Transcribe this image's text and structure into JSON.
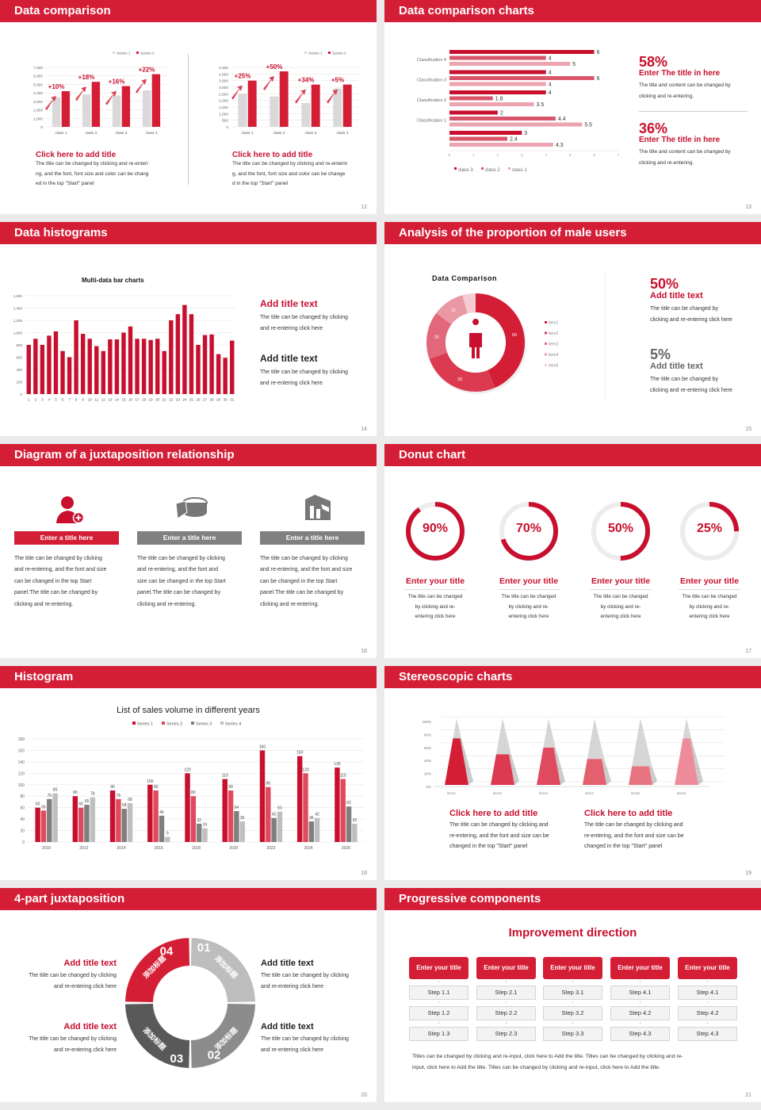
{
  "colors": {
    "accent": "#d41e36",
    "dark": "#595959",
    "mid": "#8c8c8c",
    "light": "#bdbdbd"
  },
  "slides": {
    "s12": {
      "title": "Data comparison",
      "page": "12",
      "charts": [
        {
          "type": "bar",
          "legend": [
            "Series 1",
            "Series 2"
          ],
          "categories": [
            "class 1",
            "class 2",
            "class 3",
            "class 4"
          ],
          "ylim": [
            0,
            7000
          ],
          "yticks": [
            "0",
            "1,000",
            "2,000",
            "3,000",
            "4,000",
            "5,000",
            "6,000",
            "7,000"
          ],
          "series": [
            {
              "name": "Series 1",
              "values": [
                3500,
                3800,
                3700,
                4300
              ]
            },
            {
              "name": "Series 2",
              "values": [
                4200,
                5300,
                4800,
                6200
              ]
            }
          ],
          "growth": [
            "+10%",
            "+18%",
            "+16%",
            "+22%"
          ]
        },
        {
          "type": "bar",
          "legend": [
            "Series 1",
            "Series 2"
          ],
          "categories": [
            "class 1",
            "class 2",
            "class 3",
            "class 4"
          ],
          "ylim": [
            0,
            4500
          ],
          "yticks": [
            "0",
            "500",
            "1,000",
            "1,500",
            "2,000",
            "2,500",
            "3,000",
            "3,500",
            "4,000",
            "4,500"
          ],
          "series": [
            {
              "name": "Series 1",
              "values": [
                2500,
                2300,
                1800,
                2900
              ]
            },
            {
              "name": "Series 2",
              "values": [
                3500,
                4200,
                3200,
                3200
              ]
            }
          ],
          "growth": [
            "+25%",
            "+50%",
            "+34%",
            "+5%"
          ]
        }
      ],
      "blocks": [
        {
          "title": "Click here to add title",
          "body": [
            "The title can be changed by clicking and re-enteri",
            "ng, and the font, font size and color can be chang",
            "ed in the top \"Start\" panel"
          ]
        },
        {
          "title": "Click here to add title",
          "body": [
            "The title can be changed by clicking and re-enterin",
            "g, and the font, font size and color can be change",
            "d in the top \"Start\" panel"
          ]
        }
      ]
    },
    "s13": {
      "title": "Data comparison charts",
      "page": "13",
      "chart": {
        "type": "bar",
        "orientation": "horizontal",
        "group_labels": [
          "Classification 4",
          "Classification 3",
          "Classification 2",
          "Classification 1",
          ""
        ],
        "xlim": [
          0,
          7
        ],
        "xticks": [
          "0",
          "1",
          "2",
          "3",
          "4",
          "5",
          "6",
          "7"
        ],
        "series": [
          {
            "name": "class 3",
            "values": [
              6,
              4,
              4,
              2,
              3
            ]
          },
          {
            "name": "class 2",
            "values": [
              4,
              6,
              1.8,
              4.4,
              2.4
            ]
          },
          {
            "name": "class 1",
            "values": [
              5,
              4,
              3.5,
              5.5,
              4.3
            ]
          }
        ],
        "value_labels": [
          [
            "6",
            "4",
            "5"
          ],
          [
            "4",
            "6",
            "4"
          ],
          [
            "4",
            "1.8",
            "3.5"
          ],
          [
            "2",
            "4.4",
            "5.5"
          ],
          [
            "3",
            "2.4",
            "4.3"
          ]
        ]
      },
      "stats": [
        {
          "pct": "58%",
          "title": "Enter The title in here",
          "body": [
            "The title and content can be changed by",
            "clicking and re-entering."
          ]
        },
        {
          "pct": "36%",
          "title": "Enter The title in here",
          "body": [
            "The title and content can be changed by",
            "clicking and re-entering."
          ]
        }
      ]
    },
    "s14": {
      "title": "Data histograms",
      "page": "14",
      "chart": {
        "type": "bar",
        "title": "Multi-data bar charts",
        "ylim": [
          0,
          1600
        ],
        "yticks": [
          "0",
          "200",
          "400",
          "600",
          "800",
          "1,000",
          "1,200",
          "1,400",
          "1,600"
        ],
        "categories": [
          "1",
          "2",
          "3",
          "4",
          "5",
          "6",
          "7",
          "8",
          "9",
          "10",
          "11",
          "12",
          "13",
          "14",
          "15",
          "16",
          "17",
          "18",
          "19",
          "20",
          "21",
          "22",
          "23",
          "24",
          "25",
          "26",
          "27",
          "28",
          "29",
          "30",
          "31"
        ],
        "values": [
          800,
          900,
          800,
          950,
          1020,
          700,
          600,
          1200,
          980,
          900,
          780,
          700,
          890,
          890,
          1000,
          1100,
          900,
          900,
          880,
          900,
          700,
          1200,
          1300,
          1450,
          1300,
          800,
          960,
          970,
          650,
          590,
          870
        ]
      },
      "blocks": [
        {
          "title": "Add title text",
          "body": [
            "The title can be changed by clicking",
            "and re-entering click here"
          ]
        },
        {
          "title": "Add title text",
          "body": [
            "The title can be changed by clicking",
            "and re-entering click here"
          ]
        }
      ]
    },
    "s15": {
      "title": "Analysis of the proportion of male users",
      "page": "15",
      "chart": {
        "type": "pie",
        "title": "Data Comparison",
        "labels": [
          "item1",
          "item2",
          "item3",
          "item4",
          "item5"
        ],
        "values": [
          50,
          30,
          18,
          12,
          5
        ],
        "colors": [
          "#d41e36",
          "#dc3a50",
          "#e2677a",
          "#eb98a5",
          "#f5ccd3"
        ]
      },
      "stats": [
        {
          "pct": "50%",
          "title": "Add title text",
          "body": [
            "The title can be changed by",
            "clicking and re-entering click here"
          ]
        },
        {
          "pct": "5%",
          "title": "Add title text",
          "body": [
            "The title can be changed by",
            "clicking and re-entering click here"
          ]
        }
      ]
    },
    "s16": {
      "title": "Diagram of a juxtaposition relationship",
      "page": "16",
      "cols": [
        {
          "icon": "user-add-icon",
          "title": "Enter a title here",
          "body": [
            "The title can be changed by clicking",
            "and re-entering, and the font and size",
            "can be changed in the top Start",
            "panel.The title can be changed by",
            "clicking and re-entering."
          ]
        },
        {
          "icon": "pie-3d-icon",
          "title": "Enter a title here",
          "body": [
            "The title can be changed by clicking",
            "and re-entering, and the font and",
            "size can be changed in the top Start",
            "panel.The title can be changed by",
            "clicking and re-entering."
          ]
        },
        {
          "icon": "building-chart-icon",
          "title": "Enter a title here",
          "body": [
            "The title can be changed by clicking",
            "and re-entering, and the font and size",
            "can be changed in the top Start",
            "panel.The title can be changed by",
            "clicking and re-entering."
          ]
        }
      ]
    },
    "s17": {
      "title": "Donut chart",
      "page": "17",
      "items": [
        {
          "pct": "90%",
          "value": 90,
          "title": "Enter your title",
          "body": [
            "The title can be changed",
            "by clicking and re-",
            "entering click here"
          ]
        },
        {
          "pct": "70%",
          "value": 70,
          "title": "Enter your title",
          "body": [
            "The title can be changed",
            "by clicking and re-",
            "entering click here"
          ]
        },
        {
          "pct": "50%",
          "value": 50,
          "title": "Enter your title",
          "body": [
            "The title can be changed",
            "by clicking and re-",
            "entering click here"
          ]
        },
        {
          "pct": "25%",
          "value": 25,
          "title": "Enter your title",
          "body": [
            "The title can be changed",
            "by clicking and re-",
            "entering click here"
          ]
        }
      ]
    },
    "s18": {
      "title": "Histogram",
      "page": "18",
      "chart": {
        "type": "bar",
        "title": "List of sales volume in different years",
        "legend": [
          "Series 1",
          "Series 2",
          "Series 3",
          "Series 4"
        ],
        "colors": [
          "#c8102e",
          "#e04a5f",
          "#7f7f7f",
          "#bfbfbf"
        ],
        "ylim": [
          0,
          180
        ],
        "yticks": [
          "0",
          "20",
          "40",
          "60",
          "80",
          "100",
          "120",
          "140",
          "160",
          "180"
        ],
        "categories": [
          "2010",
          "2012",
          "2014",
          "2016",
          "2018",
          "2020",
          "2022",
          "2024",
          "2026"
        ],
        "series": [
          {
            "name": "Series 1",
            "values": [
              60,
              80,
              90,
              100,
              120,
              110,
              160,
              150,
              130
            ]
          },
          {
            "name": "Series 2",
            "values": [
              55,
              60,
              75,
              90,
              80,
              90,
              96,
              120,
              110
            ]
          },
          {
            "name": "Series 3",
            "values": [
              75,
              65,
              58,
              46,
              32,
              54,
              42,
              36,
              62
            ]
          },
          {
            "name": "Series 4",
            "values": [
              85,
              78,
              68,
              9,
              24,
              36,
              53,
              42,
              32
            ]
          }
        ]
      }
    },
    "s19": {
      "title": "Stereoscopic charts",
      "page": "19",
      "chart": {
        "type": "bar",
        "style": "3d-pyramid",
        "ylim": [
          0,
          100
        ],
        "yticks": [
          "0%",
          "20%",
          "40%",
          "60%",
          "80%",
          "100%"
        ],
        "categories": [
          "item1",
          "item2",
          "item3",
          "item4",
          "item5",
          "item6"
        ],
        "values": [
          70,
          46,
          56,
          39,
          28,
          70
        ],
        "colors": [
          "#d41e36",
          "#dc3a50",
          "#e04a5f",
          "#e4606f",
          "#e87482",
          "#ee8d99"
        ]
      },
      "blocks": [
        {
          "title": "Click here to add title",
          "body": [
            "The title can be changed by clicking and",
            "re-entering, and the font and size can be",
            "changed in the top \"Start\" panel"
          ]
        },
        {
          "title": "Click here to add title",
          "body": [
            "The title can be changed by clicking and",
            "re-entering, and the font and size can be",
            "changed in the top \"Start\" panel"
          ]
        }
      ]
    },
    "s20": {
      "title": "4-part juxtaposition",
      "page": "20",
      "ring": [
        {
          "num": "01",
          "label": "添加标题"
        },
        {
          "num": "02",
          "label": "添加标题"
        },
        {
          "num": "03",
          "label": "添加标题"
        },
        {
          "num": "04",
          "label": "添加标题"
        }
      ],
      "blocks": [
        {
          "title": "Add title text",
          "body": [
            "The title can be changed by clicking",
            "and re-entering click here"
          ]
        },
        {
          "title": "Add title text",
          "body": [
            "The title can be changed by clicking",
            "and re-entering click here"
          ]
        },
        {
          "title": "Add title text",
          "body": [
            "The title can be changed by clicking",
            "and re-entering click here"
          ]
        },
        {
          "title": "Add title text",
          "body": [
            "The title can be changed by clicking",
            "and re-entering click here"
          ]
        }
      ]
    },
    "s21": {
      "title": "Progressive components",
      "page": "21",
      "heading": "Improvement direction",
      "cols": [
        {
          "title": "Enter your title",
          "steps": [
            "Step 1.1",
            "Step 1.2",
            "Step 1.3"
          ]
        },
        {
          "title": "Enter your title",
          "steps": [
            "Step 2.1",
            "Step 2.2",
            "Step 2.3"
          ]
        },
        {
          "title": "Enter your title",
          "steps": [
            "Step 3.1",
            "Step 3.2",
            "Step 3.3"
          ]
        },
        {
          "title": "Enter your title",
          "steps": [
            "Step 4.1",
            "Step 4.2",
            "Step 4.3"
          ]
        },
        {
          "title": "Enter your title",
          "steps": [
            "Step 4.1",
            "Step 4.2",
            "Step 4.3"
          ]
        }
      ],
      "note": [
        "Titles can be changed by clicking and re-input, click here to Add the title. Titles can be changed by clicking and re-",
        "input, click here to Add the title. Titles can be changed by clicking and re-input, click here to Add the title."
      ]
    }
  }
}
